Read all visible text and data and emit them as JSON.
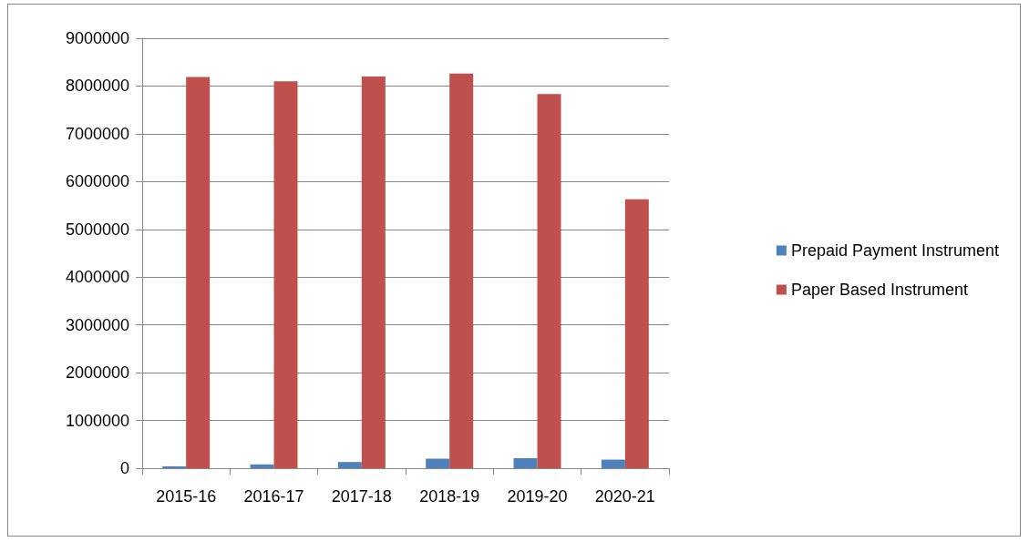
{
  "chart_data": {
    "type": "bar",
    "categories": [
      "2015-16",
      "2016-17",
      "2017-18",
      "2018-19",
      "2019-20",
      "2020-21"
    ],
    "series": [
      {
        "name": "Prepaid Payment Instrument",
        "color": "#4f81bd",
        "values": [
          40000,
          80000,
          130000,
          200000,
          210000,
          180000
        ]
      },
      {
        "name": "Paper Based Instrument",
        "color": "#c0504d",
        "values": [
          8190000,
          8100000,
          8200000,
          8260000,
          7830000,
          5630000
        ]
      }
    ],
    "ylim": [
      0,
      9000000
    ],
    "yticks": [
      0,
      1000000,
      2000000,
      3000000,
      4000000,
      5000000,
      6000000,
      7000000,
      8000000,
      9000000
    ],
    "grid": "y",
    "legend": "right"
  }
}
